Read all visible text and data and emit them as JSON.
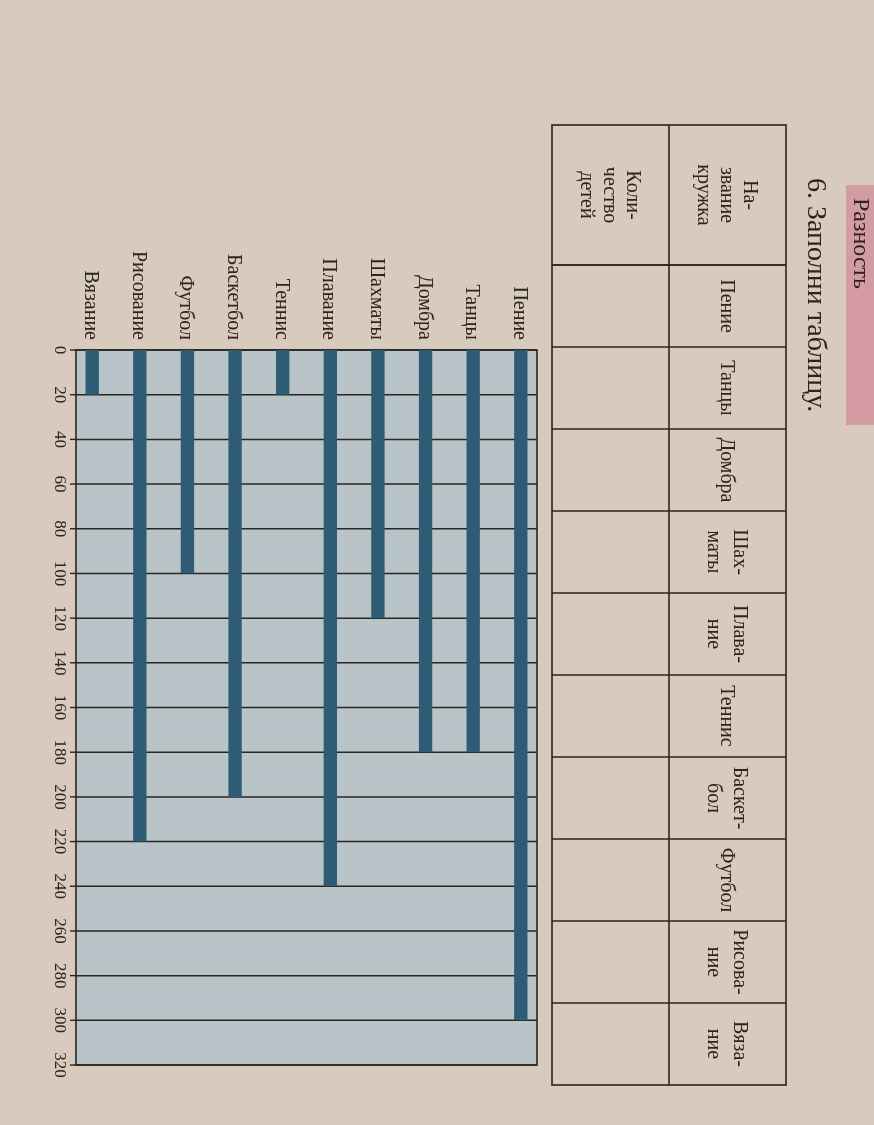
{
  "chart_data": [
    {
      "type": "other",
      "title": "6. Заполни таблицу.",
      "annotations": [
        "Разность"
      ],
      "categories": [
        "Пение",
        "Танцы",
        "Домбра",
        "Шах-\nматы",
        "Плава-\nние",
        "Теннис",
        "Баскет-\nбол",
        "Футбол",
        "Рисова-\nние",
        "Вяза-\nние"
      ],
      "y_categories": [
        "На-\nзвание\nкружка",
        "Коли-\nчество\nдетей"
      ]
    },
    {
      "type": "bar",
      "categories": [
        "Вязание",
        "Рисование",
        "Футбол",
        "Баскетбол",
        "Теннис",
        "Плавание",
        "Шахматы",
        "Домбра",
        "Танцы",
        "Пение"
      ],
      "values": [
        20,
        220,
        100,
        200,
        20,
        240,
        120,
        180,
        180,
        300
      ],
      "color": "#2e5c74",
      "ylim": [
        320,
        0
      ],
      "yticks": [
        0,
        20,
        40,
        60,
        80,
        100,
        120,
        140,
        160,
        180,
        200,
        220,
        240,
        260,
        280,
        300,
        320
      ],
      "grid": "y"
    }
  ]
}
